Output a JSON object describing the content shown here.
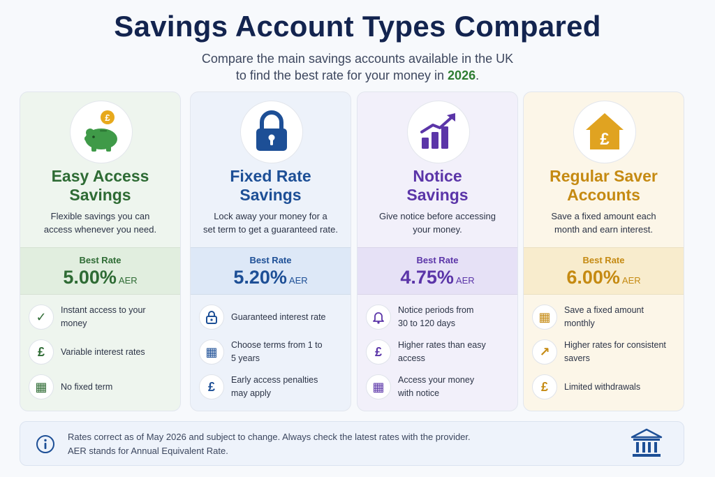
{
  "header": {
    "title": "Savings Account Types Compared",
    "subtitle_line1": "Compare the main savings accounts available in the UK",
    "subtitle_line2_prefix": "to find the best rate for your money in ",
    "subtitle_year": "2026",
    "subtitle_suffix": "."
  },
  "cards": [
    {
      "name_line1": "Easy Access",
      "name_line2": "Savings",
      "icon": "piggy-bank-icon",
      "badge_symbol": "£",
      "desc_line1": "Flexible savings you can",
      "desc_line2": "access whenever you need.",
      "best_label": "Best Rate",
      "rate": "5.00%",
      "aer": "AER",
      "accent": "#2e6b34",
      "features": [
        {
          "icon": "check-icon",
          "symbol": "✓",
          "line1": "Instant access to your money",
          "line2": ""
        },
        {
          "icon": "pound-icon",
          "symbol": "£",
          "line1": "Variable interest rates",
          "line2": ""
        },
        {
          "icon": "calendar-icon",
          "symbol": "▦",
          "line1": "No fixed term",
          "line2": ""
        }
      ]
    },
    {
      "name_line1": "Fixed Rate",
      "name_line2": "Savings",
      "icon": "padlock-icon",
      "desc_line1": "Lock away your money for a",
      "desc_line2": "set term to get a guaranteed rate.",
      "best_label": "Best Rate",
      "rate": "5.20%",
      "aer": "AER",
      "accent": "#1d4f96",
      "features": [
        {
          "icon": "lock-icon",
          "symbol": "🔒",
          "line1": "Guaranteed interest rate",
          "line2": ""
        },
        {
          "icon": "calendar-icon",
          "symbol": "▦",
          "line1": "Choose terms from 1 to",
          "line2": "5 years"
        },
        {
          "icon": "pound-icon",
          "symbol": "£",
          "line1": "Early access penalties",
          "line2": "may apply"
        }
      ]
    },
    {
      "name_line1": "Notice",
      "name_line2": "Savings",
      "icon": "growth-chart-icon",
      "desc_line1": "Give notice before accessing",
      "desc_line2": "your money.",
      "best_label": "Best Rate",
      "rate": "4.75%",
      "aer": "AER",
      "accent": "#5b35a8",
      "features": [
        {
          "icon": "bell-icon",
          "symbol": "🔔",
          "line1": "Notice periods from",
          "line2": "30 to 120 days"
        },
        {
          "icon": "pound-icon",
          "symbol": "£",
          "line1": "Higher rates than easy",
          "line2": "access"
        },
        {
          "icon": "calendar-icon",
          "symbol": "▦",
          "line1": "Access your money",
          "line2": "with notice"
        }
      ]
    },
    {
      "name_line1": "Regular Saver",
      "name_line2": "Accounts",
      "icon": "house-pound-icon",
      "badge_symbol": "£",
      "desc_line1": "Save a fixed amount each",
      "desc_line2": "month and earn interest.",
      "best_label": "Best Rate",
      "rate": "6.00%",
      "aer": "AER",
      "accent": "#c58a12",
      "features": [
        {
          "icon": "calendar-icon",
          "symbol": "▦",
          "line1": "Save a fixed amount",
          "line2": "monthly"
        },
        {
          "icon": "trend-up-icon",
          "symbol": "↗",
          "line1": "Higher rates for consistent",
          "line2": "savers"
        },
        {
          "icon": "pound-icon",
          "symbol": "£",
          "line1": "Limited withdrawals",
          "line2": ""
        }
      ]
    }
  ],
  "footer": {
    "line1": "Rates correct as of May 2026 and subject to change. Always check the latest rates with the provider.",
    "line2": "AER stands for Annual Equivalent Rate.",
    "info_icon": "info-icon",
    "bank_icon": "bank-icon"
  }
}
